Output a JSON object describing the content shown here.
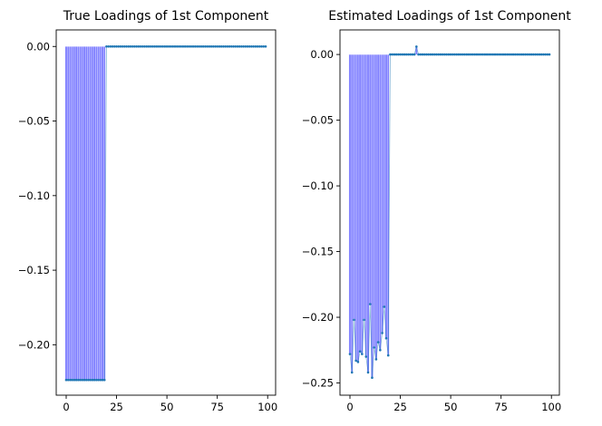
{
  "chart_data": [
    {
      "type": "bar",
      "title": "True Loadings of 1st Component",
      "xlabel": "",
      "ylabel": "",
      "xlim": [
        -4.95,
        103.95
      ],
      "ylim": [
        -0.2338,
        0.0111
      ],
      "xticks": [
        0,
        25,
        50,
        75,
        100
      ],
      "xtick_labels": [
        "0",
        "25",
        "50",
        "75",
        "100"
      ],
      "yticks": [
        0.0,
        -0.05,
        -0.1,
        -0.15,
        -0.2
      ],
      "ytick_labels": [
        "0.00",
        "−0.05",
        "−0.10",
        "−0.15",
        "−0.20"
      ],
      "bar_color": "#8080ff",
      "marker_color": "#1f77b4",
      "x_start": 0,
      "values": [
        -0.2236,
        -0.2236,
        -0.2236,
        -0.2236,
        -0.2236,
        -0.2236,
        -0.2236,
        -0.2236,
        -0.2236,
        -0.2236,
        -0.2236,
        -0.2236,
        -0.2236,
        -0.2236,
        -0.2236,
        -0.2236,
        -0.2236,
        -0.2236,
        -0.2236,
        -0.2236,
        0,
        0,
        0,
        0,
        0,
        0,
        0,
        0,
        0,
        0,
        0,
        0,
        0,
        0,
        0,
        0,
        0,
        0,
        0,
        0,
        0,
        0,
        0,
        0,
        0,
        0,
        0,
        0,
        0,
        0,
        0,
        0,
        0,
        0,
        0,
        0,
        0,
        0,
        0,
        0,
        0,
        0,
        0,
        0,
        0,
        0,
        0,
        0,
        0,
        0,
        0,
        0,
        0,
        0,
        0,
        0,
        0,
        0,
        0,
        0,
        0,
        0,
        0,
        0,
        0,
        0,
        0,
        0,
        0,
        0,
        0,
        0,
        0,
        0,
        0,
        0,
        0,
        0,
        0,
        0
      ]
    },
    {
      "type": "bar",
      "title": "Estimated Loadings of 1st Component",
      "xlabel": "",
      "ylabel": "",
      "xlim": [
        -4.95,
        103.95
      ],
      "ylim": [
        -0.2593,
        0.0187
      ],
      "xticks": [
        0,
        25,
        50,
        75,
        100
      ],
      "xtick_labels": [
        "0",
        "25",
        "50",
        "75",
        "100"
      ],
      "yticks": [
        0.0,
        -0.05,
        -0.1,
        -0.15,
        -0.2,
        -0.25
      ],
      "ytick_labels": [
        "0.00",
        "−0.05",
        "−0.10",
        "−0.15",
        "−0.20",
        "−0.25"
      ],
      "bar_color": "#8080ff",
      "marker_color": "#1f77b4",
      "x_start": 0,
      "values": [
        -0.228,
        -0.242,
        -0.202,
        -0.233,
        -0.234,
        -0.226,
        -0.228,
        -0.202,
        -0.23,
        -0.242,
        -0.19,
        -0.246,
        -0.223,
        -0.232,
        -0.219,
        -0.225,
        -0.212,
        -0.192,
        -0.216,
        -0.229,
        0,
        0,
        0,
        0,
        0,
        0,
        0,
        0,
        0,
        0,
        0,
        0,
        0,
        0.006,
        0,
        0,
        0,
        0,
        0,
        0,
        0,
        0,
        0,
        0,
        0,
        0,
        0,
        0,
        0,
        0,
        0,
        0,
        0,
        0,
        0,
        0,
        0,
        0,
        0,
        0,
        0,
        0,
        0,
        0,
        0,
        0,
        0,
        0,
        0,
        0,
        0,
        0,
        0,
        0,
        0,
        0,
        0,
        0,
        0,
        0,
        0,
        0,
        0,
        0,
        0,
        0,
        0,
        0,
        0,
        0,
        0,
        0,
        0,
        0,
        0,
        0,
        0,
        0,
        0,
        0
      ]
    }
  ]
}
